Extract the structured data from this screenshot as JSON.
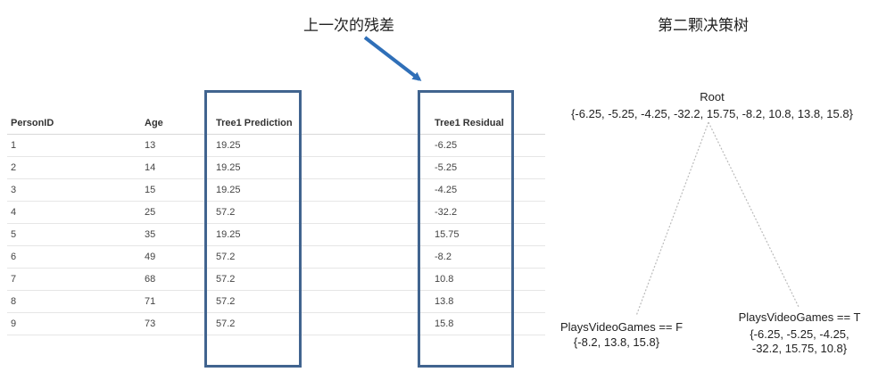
{
  "header": {
    "left_title": "上一次的残差",
    "right_title": "第二颗决策树"
  },
  "table": {
    "columns": [
      "PersonID",
      "Age",
      "Tree1 Prediction",
      "",
      "Tree1 Residual"
    ],
    "rows": [
      [
        "1",
        "13",
        "19.25",
        "",
        "-6.25"
      ],
      [
        "2",
        "14",
        "19.25",
        "",
        "-5.25"
      ],
      [
        "3",
        "15",
        "19.25",
        "",
        "-4.25"
      ],
      [
        "4",
        "25",
        "57.2",
        "",
        "-32.2"
      ],
      [
        "5",
        "35",
        "19.25",
        "",
        "15.75"
      ],
      [
        "6",
        "49",
        "57.2",
        "",
        "-8.2"
      ],
      [
        "7",
        "68",
        "57.2",
        "",
        "10.8"
      ],
      [
        "8",
        "71",
        "57.2",
        "",
        "13.8"
      ],
      [
        "9",
        "73",
        "57.2",
        "",
        "15.8"
      ]
    ]
  },
  "tree": {
    "root": {
      "label": "Root",
      "values": "{-6.25, -5.25, -4.25, -32.2, 15.75, -8.2, 10.8, 13.8, 15.8}"
    },
    "left": {
      "label": "PlaysVideoGames == F",
      "values": "{-8.2, 13.8, 15.8}"
    },
    "right": {
      "label": "PlaysVideoGames == T",
      "values_line1": "{-6.25, -5.25, -4.25,",
      "values_line2": "-32.2, 15.75, 10.8}"
    }
  },
  "colors": {
    "highlight_box": "#41648f",
    "arrow": "#2f6fb8",
    "tree_edge": "#bbbbbb"
  }
}
